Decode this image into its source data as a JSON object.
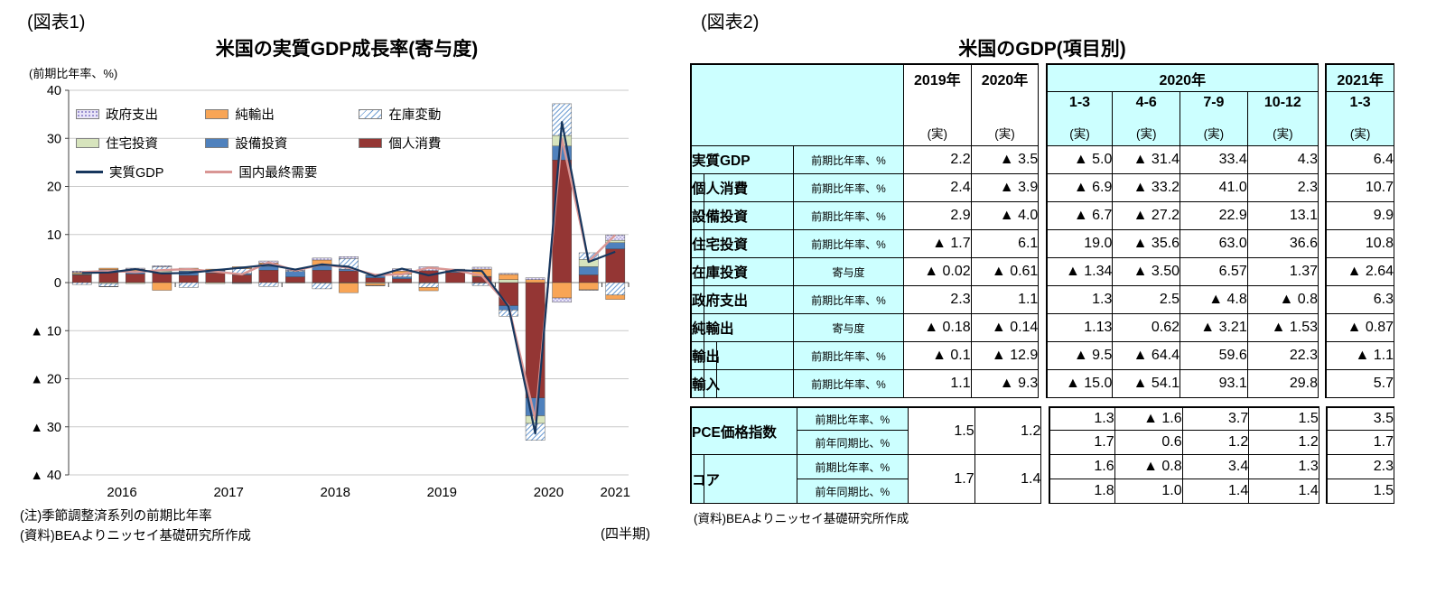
{
  "figure1": {
    "label": "(図表1)",
    "axis_unit": "(前期比年率、%)",
    "title": "米国の実質GDP成長率(寄与度)",
    "x_note": "(四半期)",
    "note1": "(注)季節調整済系列の前期比年率",
    "note2": "(資料)BEAよりニッセイ基礎研究所作成",
    "legend_order": [
      "政府支出",
      "純輸出",
      "在庫変動",
      "住宅投資",
      "設備投資",
      "個人消費",
      "実質GDP",
      "国内最終需要"
    ]
  },
  "chart_data": {
    "type": "bar",
    "subtype": "stacked-bar-with-lines",
    "title": "米国の実質GDP成長率(寄与度)",
    "ylabel": "(前期比年率、%)",
    "xlabel": "(四半期)",
    "ylim": [
      -40,
      40
    ],
    "ytick": 10,
    "grid": true,
    "legend_position": "top-left-inside",
    "x": [
      "2016Q1",
      "2016Q2",
      "2016Q3",
      "2016Q4",
      "2017Q1",
      "2017Q2",
      "2017Q3",
      "2017Q4",
      "2018Q1",
      "2018Q2",
      "2018Q3",
      "2018Q4",
      "2019Q1",
      "2019Q2",
      "2019Q3",
      "2019Q4",
      "2020Q1",
      "2020Q2",
      "2020Q3",
      "2020Q4",
      "2021Q1"
    ],
    "year_groups": [
      {
        "label": "2016",
        "count": 4
      },
      {
        "label": "2017",
        "count": 4
      },
      {
        "label": "2018",
        "count": 4
      },
      {
        "label": "2019",
        "count": 4
      },
      {
        "label": "2020",
        "count": 4
      },
      {
        "label": "2021",
        "count": 1
      }
    ],
    "series": [
      {
        "name": "個人消費",
        "kind": "bar",
        "color": "#943634",
        "values": [
          1.6,
          2.4,
          1.8,
          2.0,
          1.5,
          2.0,
          1.6,
          2.6,
          1.2,
          2.6,
          2.4,
          1.0,
          0.8,
          2.5,
          2.1,
          1.2,
          -4.8,
          -24.0,
          25.5,
          1.6,
          7.0
        ]
      },
      {
        "name": "設備投資",
        "kind": "bar",
        "color": "#4f81bd",
        "values": [
          0.1,
          0.3,
          0.4,
          0.1,
          0.9,
          0.5,
          0.3,
          0.8,
          1.1,
          0.9,
          0.4,
          0.5,
          0.4,
          0.0,
          0.2,
          -0.1,
          -0.9,
          -3.7,
          2.9,
          1.7,
          1.3
        ]
      },
      {
        "name": "住宅投資",
        "kind": "bar",
        "color": "#d7e4bd",
        "values": [
          0.2,
          -0.2,
          -0.2,
          0.3,
          0.4,
          -0.2,
          -0.1,
          0.4,
          -0.1,
          -0.1,
          -0.1,
          -0.2,
          -0.1,
          -0.1,
          0.2,
          0.1,
          0.6,
          -1.6,
          2.2,
          1.5,
          0.5
        ]
      },
      {
        "name": "在庫変動",
        "kind": "bar",
        "color": "#ffffff",
        "pattern": "hatch",
        "pattern_color": "#6f9ed4",
        "values": [
          -0.4,
          -0.6,
          0.2,
          0.9,
          -1.0,
          0.1,
          1.0,
          -0.8,
          0.2,
          -1.2,
          2.2,
          0.1,
          0.5,
          -0.9,
          0.0,
          -0.5,
          -1.3,
          -3.5,
          6.6,
          1.4,
          -2.6
        ]
      },
      {
        "name": "純輸出",
        "kind": "bar",
        "color": "#f8a556",
        "values": [
          0.2,
          0.3,
          0.4,
          -1.6,
          0.2,
          0.2,
          0.4,
          0.3,
          0.0,
          1.2,
          -2.0,
          -0.4,
          0.7,
          -0.7,
          0.0,
          1.5,
          1.1,
          0.6,
          -3.2,
          -1.5,
          -0.9
        ]
      },
      {
        "name": "政府支出",
        "kind": "bar",
        "color": "#e9e5f8",
        "pattern": "dots",
        "pattern_color": "#8276c4",
        "values": [
          0.3,
          -0.1,
          0.2,
          0.2,
          0.0,
          0.0,
          -0.1,
          0.4,
          0.3,
          0.4,
          0.4,
          -0.1,
          0.5,
          0.8,
          0.3,
          0.4,
          0.2,
          0.4,
          -0.9,
          -0.1,
          1.1
        ]
      },
      {
        "name": "実質GDP",
        "kind": "line",
        "color": "#17365d",
        "line_width": 2.2,
        "values": [
          2.0,
          2.1,
          2.8,
          1.9,
          2.0,
          2.6,
          3.1,
          3.7,
          2.7,
          3.8,
          3.3,
          1.3,
          2.9,
          1.5,
          2.6,
          2.4,
          -5.0,
          -31.4,
          33.4,
          4.3,
          6.4
        ]
      },
      {
        "name": "国内最終需要",
        "kind": "line",
        "color": "#d99694",
        "line_width": 2.4,
        "values": [
          2.2,
          2.4,
          2.2,
          2.6,
          2.8,
          2.3,
          1.7,
          4.2,
          2.5,
          3.8,
          3.1,
          1.6,
          1.7,
          3.1,
          2.6,
          1.4,
          -4.8,
          -28.5,
          30.0,
          4.4,
          9.9
        ]
      }
    ]
  },
  "figure2": {
    "label": "(図表2)",
    "title": "米国のGDP(項目別)",
    "note": "(資料)BEAよりニッセイ基礎研究所作成",
    "header": {
      "annual": [
        {
          "year": "2019年",
          "actual": "(実)"
        },
        {
          "year": "2020年",
          "actual": "(実)"
        }
      ],
      "q2020": {
        "year": "2020年",
        "quarters": [
          "1-3",
          "4-6",
          "7-9",
          "10-12"
        ],
        "actual": "(実)"
      },
      "q2021": {
        "year": "2021年",
        "quarter": "1-3",
        "actual": "(実)"
      }
    },
    "rows": [
      {
        "name": "実質GDP",
        "indent": 0,
        "unit": "前期比年率、%",
        "values": [
          "2.2",
          "▲ 3.5",
          "▲ 5.0",
          "▲ 31.4",
          "33.4",
          "4.3",
          "6.4"
        ]
      },
      {
        "name": "個人消費",
        "indent": 1,
        "unit": "前期比年率、%",
        "values": [
          "2.4",
          "▲ 3.9",
          "▲ 6.9",
          "▲ 33.2",
          "41.0",
          "2.3",
          "10.7"
        ]
      },
      {
        "name": "設備投資",
        "indent": 1,
        "unit": "前期比年率、%",
        "values": [
          "2.9",
          "▲ 4.0",
          "▲ 6.7",
          "▲ 27.2",
          "22.9",
          "13.1",
          "9.9"
        ]
      },
      {
        "name": "住宅投資",
        "indent": 1,
        "unit": "前期比年率、%",
        "values": [
          "▲ 1.7",
          "6.1",
          "19.0",
          "▲ 35.6",
          "63.0",
          "36.6",
          "10.8"
        ]
      },
      {
        "name": "在庫投資",
        "indent": 1,
        "unit": "寄与度",
        "values": [
          "▲ 0.02",
          "▲ 0.61",
          "▲ 1.34",
          "▲ 3.50",
          "6.57",
          "1.37",
          "▲ 2.64"
        ]
      },
      {
        "name": "政府支出",
        "indent": 1,
        "unit": "前期比年率、%",
        "values": [
          "2.3",
          "1.1",
          "1.3",
          "2.5",
          "▲ 4.8",
          "▲ 0.8",
          "6.3"
        ]
      },
      {
        "name": "純輸出",
        "indent": 1,
        "unit": "寄与度",
        "values": [
          "▲ 0.18",
          "▲ 0.14",
          "1.13",
          "0.62",
          "▲ 3.21",
          "▲ 1.53",
          "▲ 0.87"
        ]
      },
      {
        "name": "輸出",
        "indent": 2,
        "unit": "前期比年率、%",
        "values": [
          "▲ 0.1",
          "▲ 12.9",
          "▲ 9.5",
          "▲ 64.4",
          "59.6",
          "22.3",
          "▲ 1.1"
        ]
      },
      {
        "name": "輸入",
        "indent": 2,
        "unit": "前期比年率、%",
        "values": [
          "1.1",
          "▲ 9.3",
          "▲ 15.0",
          "▲ 54.1",
          "93.1",
          "29.8",
          "5.7"
        ]
      }
    ],
    "price_rows": [
      {
        "name": "PCE価格指数",
        "indent": 0,
        "units": [
          "前期比年率、%",
          "前年同期比、%"
        ],
        "annual": [
          "1.5",
          "1.2"
        ],
        "quarterly": [
          [
            "1.3",
            "▲ 1.6",
            "3.7",
            "1.5"
          ],
          [
            "1.7",
            "0.6",
            "1.2",
            "1.2"
          ]
        ],
        "y2021": [
          "3.5",
          "1.7"
        ]
      },
      {
        "name": "コア",
        "indent": 1,
        "units": [
          "前期比年率、%",
          "前年同期比、%"
        ],
        "annual": [
          "1.7",
          "1.4"
        ],
        "quarterly": [
          [
            "1.6",
            "▲ 0.8",
            "3.4",
            "1.3"
          ],
          [
            "1.8",
            "1.0",
            "1.4",
            "1.4"
          ]
        ],
        "y2021": [
          "2.3",
          "1.5"
        ]
      }
    ]
  }
}
